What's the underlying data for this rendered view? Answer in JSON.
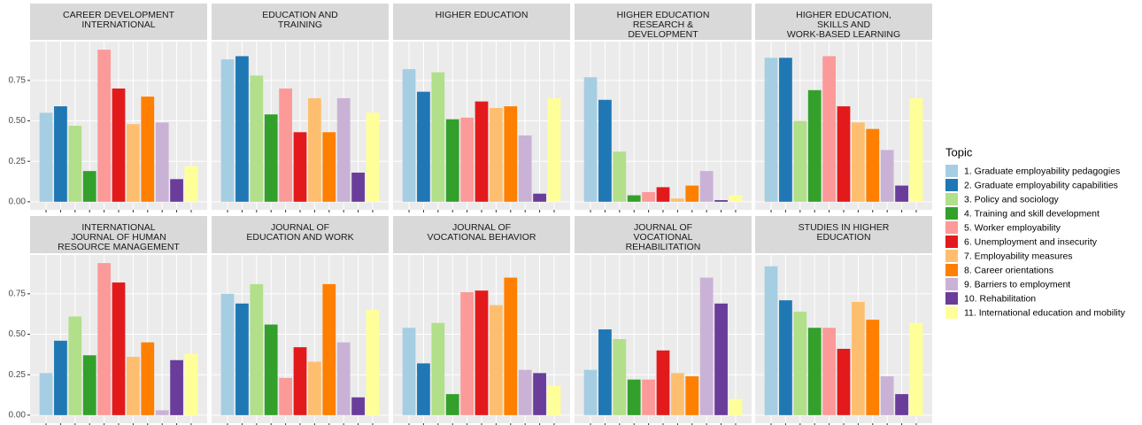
{
  "chart_data": {
    "type": "bar",
    "facets": [
      {
        "title": "CAREER DEVELOPMENT\nINTERNATIONAL",
        "values": [
          0.55,
          0.59,
          0.47,
          0.19,
          0.94,
          0.7,
          0.48,
          0.65,
          0.49,
          0.14,
          0.22
        ]
      },
      {
        "title": "EDUCATION AND\nTRAINING",
        "values": [
          0.88,
          0.9,
          0.78,
          0.54,
          0.7,
          0.43,
          0.64,
          0.43,
          0.64,
          0.18,
          0.55
        ]
      },
      {
        "title": "HIGHER EDUCATION",
        "values": [
          0.82,
          0.68,
          0.8,
          0.51,
          0.52,
          0.62,
          0.58,
          0.59,
          0.41,
          0.05,
          0.64
        ]
      },
      {
        "title": "HIGHER EDUCATION\nRESEARCH &\nDEVELOPMENT",
        "values": [
          0.77,
          0.63,
          0.31,
          0.04,
          0.06,
          0.09,
          0.02,
          0.1,
          0.19,
          0.01,
          0.04
        ]
      },
      {
        "title": "HIGHER EDUCATION,\nSKILLS AND\nWORK-BASED LEARNING",
        "values": [
          0.89,
          0.89,
          0.5,
          0.69,
          0.9,
          0.59,
          0.49,
          0.45,
          0.32,
          0.1,
          0.64
        ]
      },
      {
        "title": "INTERNATIONAL\nJOURNAL OF HUMAN\nRESOURCE MANAGEMENT",
        "values": [
          0.26,
          0.46,
          0.61,
          0.37,
          0.94,
          0.82,
          0.36,
          0.45,
          0.03,
          0.34,
          0.38
        ]
      },
      {
        "title": "JOURNAL OF\nEDUCATION AND WORK",
        "values": [
          0.75,
          0.69,
          0.81,
          0.56,
          0.23,
          0.42,
          0.33,
          0.81,
          0.45,
          0.11,
          0.65
        ]
      },
      {
        "title": "JOURNAL OF\nVOCATIONAL BEHAVIOR",
        "values": [
          0.54,
          0.32,
          0.57,
          0.13,
          0.76,
          0.77,
          0.68,
          0.85,
          0.28,
          0.26,
          0.18
        ]
      },
      {
        "title": "JOURNAL OF\nVOCATIONAL\nREHABILITATION",
        "values": [
          0.28,
          0.53,
          0.47,
          0.22,
          0.22,
          0.4,
          0.26,
          0.24,
          0.85,
          0.69,
          0.1
        ]
      },
      {
        "title": "STUDIES IN HIGHER\nEDUCATION",
        "values": [
          0.92,
          0.71,
          0.64,
          0.54,
          0.54,
          0.41,
          0.7,
          0.59,
          0.24,
          0.13,
          0.57
        ]
      }
    ],
    "legend_title": "Topic",
    "topics": [
      {
        "name": "1. Graduate employability pedagogies",
        "color": "#a6cee3"
      },
      {
        "name": "2. Graduate employability capabilities",
        "color": "#1f78b4"
      },
      {
        "name": "3. Policy and sociology",
        "color": "#b2df8a"
      },
      {
        "name": "4. Training and skill development",
        "color": "#33a02c"
      },
      {
        "name": "5. Worker employability",
        "color": "#fb9a99"
      },
      {
        "name": "6. Unemployment and insecurity",
        "color": "#e31a1c"
      },
      {
        "name": "7. Employability measures",
        "color": "#fdbf6f"
      },
      {
        "name": "8. Career orientations",
        "color": "#ff7f00"
      },
      {
        "name": "9. Barriers to employment",
        "color": "#cab2d6"
      },
      {
        "name": "10. Rehabilitation",
        "color": "#6a3d9a"
      },
      {
        "name": "11. International education and mobility",
        "color": "#ffff99"
      }
    ],
    "ylim": [
      -0.05,
      0.99
    ],
    "yticks": [
      {
        "value": 0,
        "label": "0.00"
      },
      {
        "value": 0.25,
        "label": "0.25"
      },
      {
        "value": 0.5,
        "label": "0.50"
      },
      {
        "value": 0.75,
        "label": "0.75"
      }
    ],
    "grid": true
  }
}
